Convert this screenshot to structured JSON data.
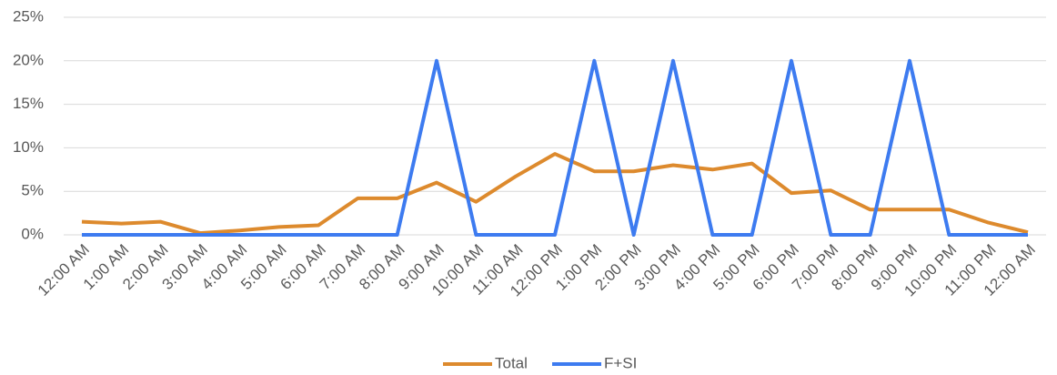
{
  "chart_data": {
    "type": "line",
    "categories": [
      "12:00 AM",
      "1:00 AM",
      "2:00 AM",
      "3:00 AM",
      "4:00 AM",
      "5:00 AM",
      "6:00 AM",
      "7:00 AM",
      "8:00 AM",
      "9:00 AM",
      "10:00 AM",
      "11:00 AM",
      "12:00 PM",
      "1:00 PM",
      "2:00 PM",
      "3:00 PM",
      "4:00 PM",
      "5:00 PM",
      "6:00 PM",
      "7:00 PM",
      "8:00 PM",
      "9:00 PM",
      "10:00 PM",
      "11:00 PM",
      "12:00 AM"
    ],
    "series": [
      {
        "name": "Total",
        "color": "#dd8a2d",
        "values": [
          1.5,
          1.3,
          1.5,
          0.2,
          0.5,
          0.9,
          1.1,
          4.2,
          4.2,
          6.0,
          3.8,
          6.7,
          9.3,
          7.3,
          7.3,
          8.0,
          7.5,
          8.2,
          4.8,
          5.1,
          2.9,
          2.9,
          2.9,
          1.4,
          0.3
        ]
      },
      {
        "name": "F+SI",
        "color": "#3d7bf0",
        "values": [
          0,
          0,
          0,
          0,
          0,
          0,
          0,
          0,
          0,
          20,
          0,
          0,
          0,
          20,
          0,
          20,
          0,
          0,
          20,
          0,
          0,
          20,
          0,
          0,
          0
        ]
      }
    ],
    "ylim": [
      0,
      25
    ],
    "yticks": [
      {
        "value": 0,
        "label": "0%"
      },
      {
        "value": 5,
        "label": "5%"
      },
      {
        "value": 10,
        "label": "10%"
      },
      {
        "value": 15,
        "label": "15%"
      },
      {
        "value": 20,
        "label": "20%"
      },
      {
        "value": 25,
        "label": "25%"
      }
    ],
    "grid": true,
    "legend": "bottom"
  }
}
